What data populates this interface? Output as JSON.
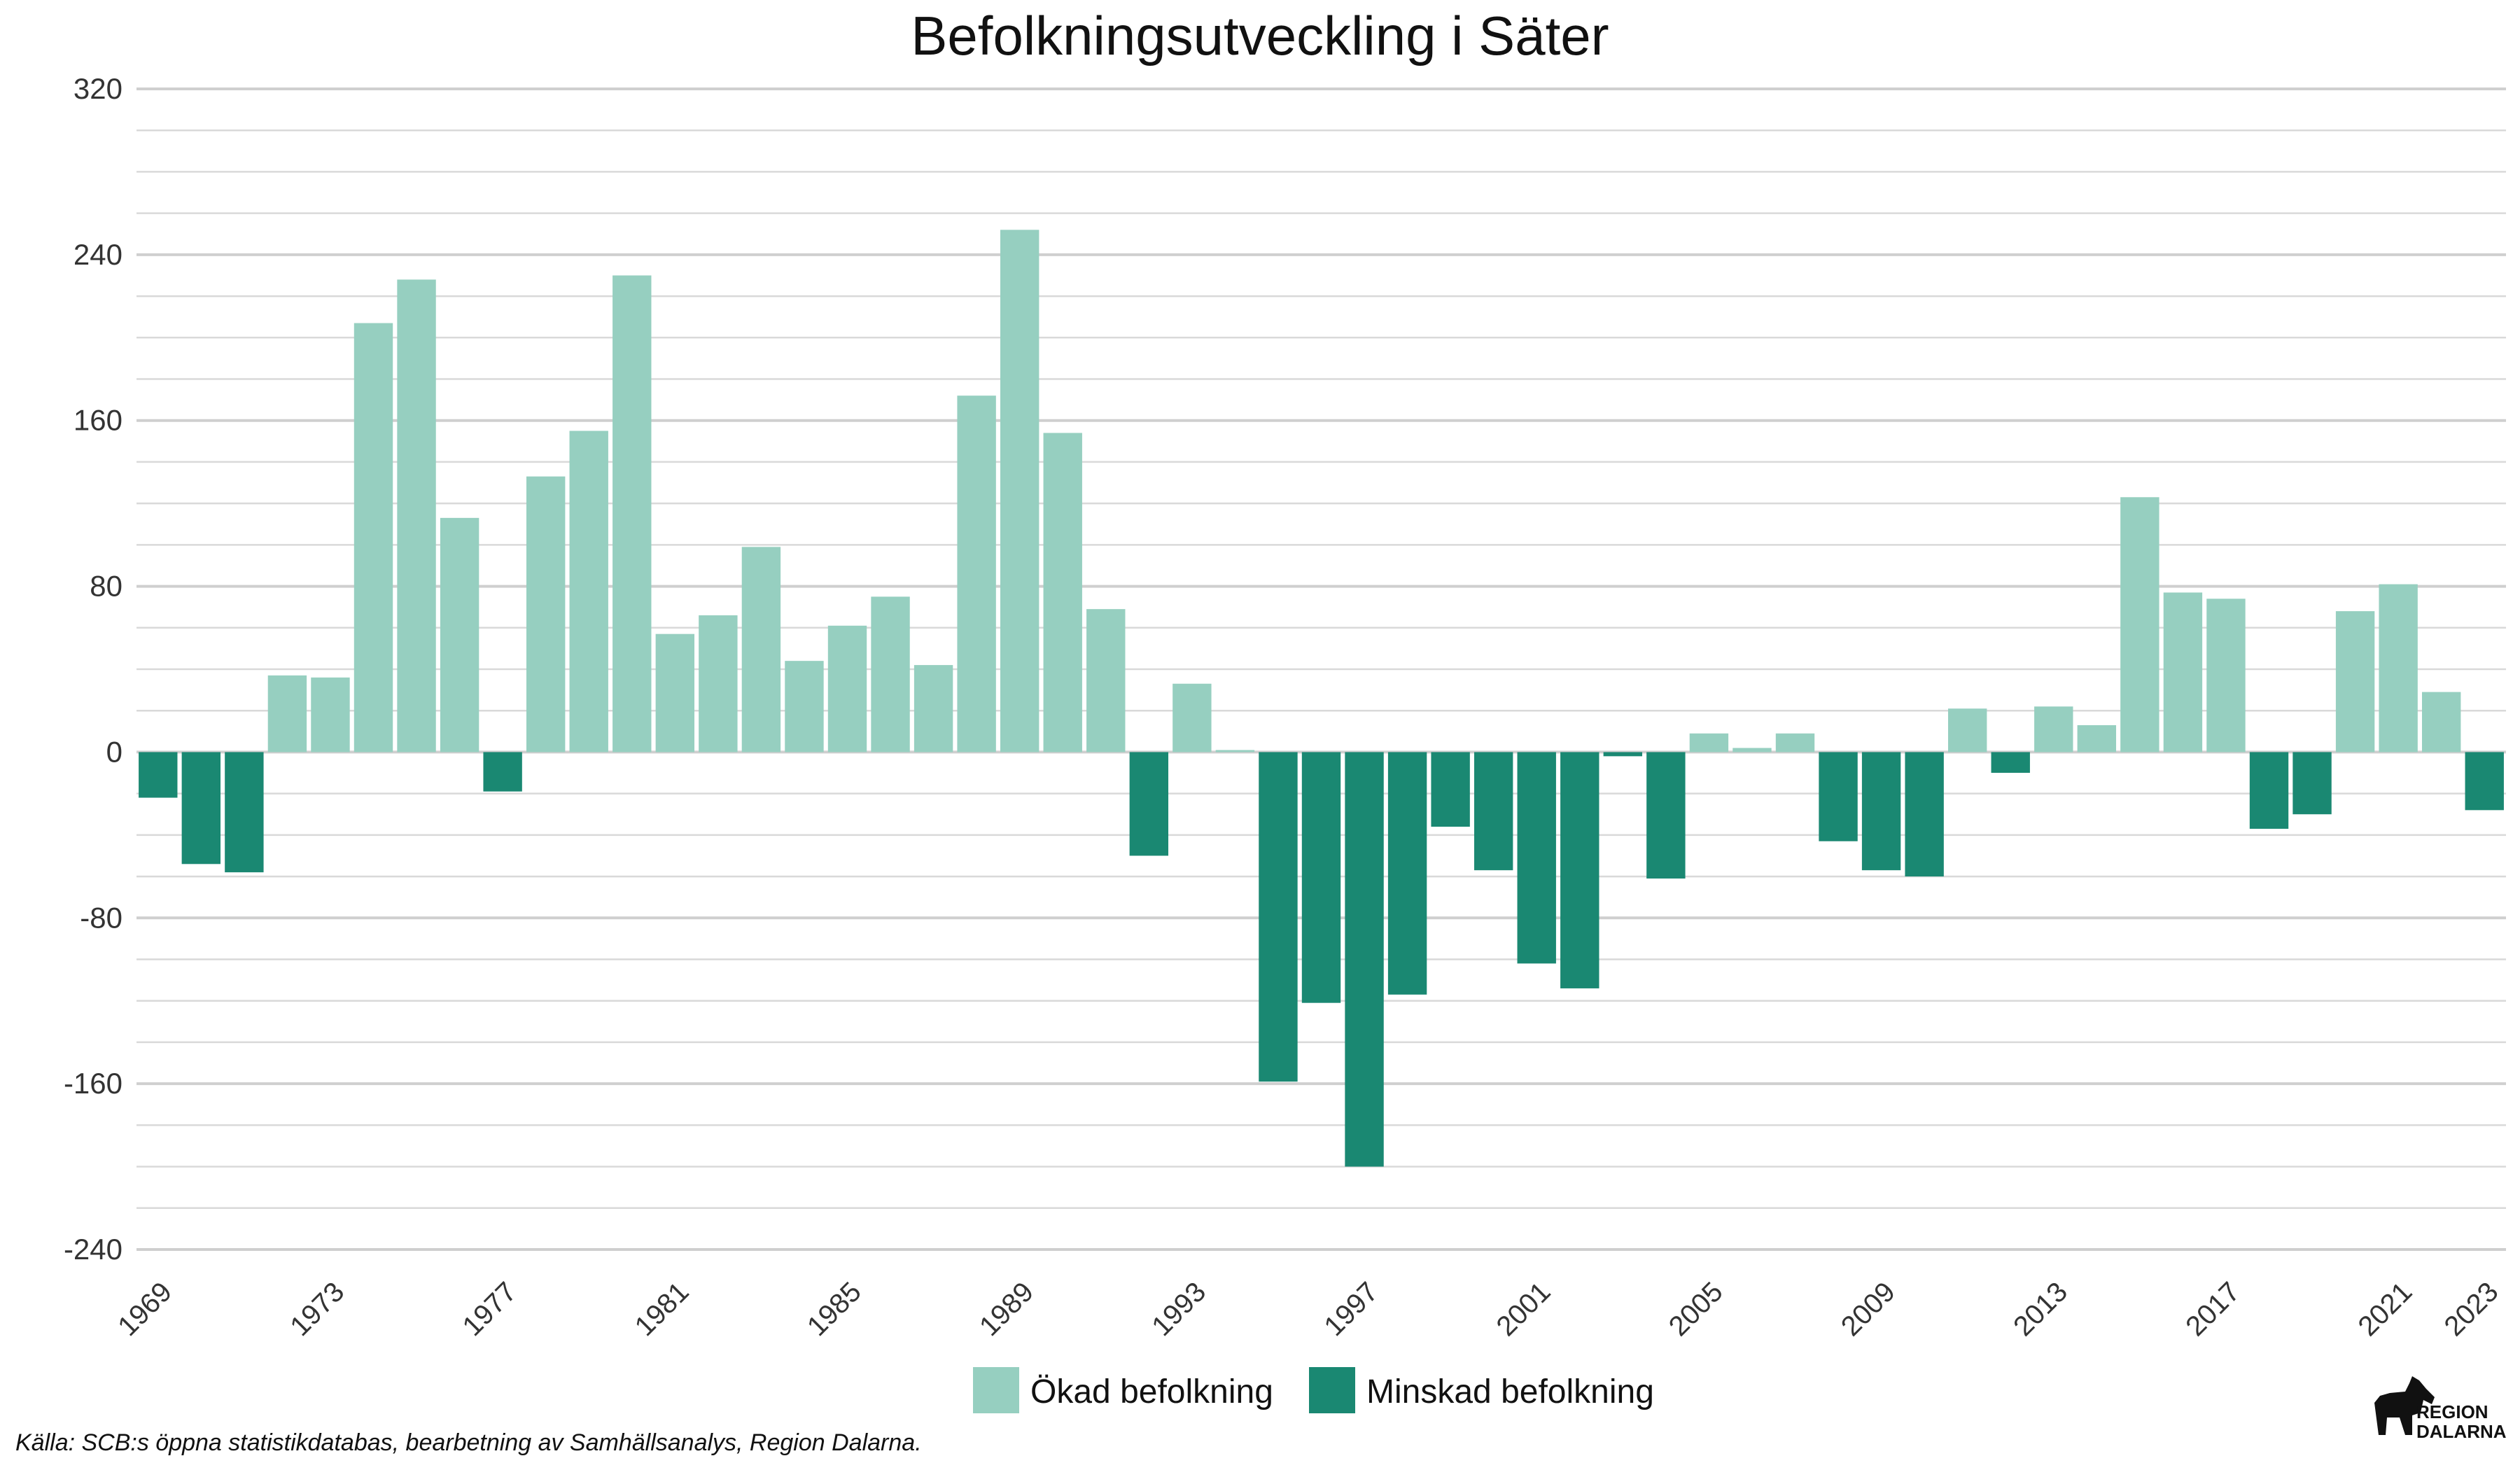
{
  "chart_data": {
    "type": "bar",
    "title": "Befolkningsutveckling i Säter",
    "xlabel": "",
    "ylabel": "",
    "ylim": [
      -240,
      320
    ],
    "yticks": [
      320,
      240,
      160,
      80,
      0,
      -80,
      -160,
      -240
    ],
    "xtick_labels": [
      "1969",
      "1973",
      "1977",
      "1981",
      "1985",
      "1989",
      "1993",
      "1997",
      "2001",
      "2005",
      "2009",
      "2013",
      "2017",
      "2021",
      "2023"
    ],
    "grid": true,
    "legend_position": "bottom",
    "categories": [
      "1969",
      "1970",
      "1971",
      "1972",
      "1973",
      "1974",
      "1975",
      "1976",
      "1977",
      "1978",
      "1979",
      "1980",
      "1981",
      "1982",
      "1983",
      "1984",
      "1985",
      "1986",
      "1987",
      "1988",
      "1989",
      "1990",
      "1991",
      "1992",
      "1993",
      "1994",
      "1995",
      "1996",
      "1997",
      "1998",
      "1999",
      "2000",
      "2001",
      "2002",
      "2003",
      "2004",
      "2005",
      "2006",
      "2007",
      "2008",
      "2009",
      "2010",
      "2011",
      "2012",
      "2013",
      "2014",
      "2015",
      "2016",
      "2017",
      "2018",
      "2019",
      "2020",
      "2021",
      "2022",
      "2023"
    ],
    "values": [
      -22,
      -54,
      -58,
      37,
      36,
      207,
      228,
      113,
      -19,
      133,
      155,
      230,
      57,
      66,
      99,
      44,
      61,
      75,
      42,
      172,
      252,
      154,
      69,
      -50,
      33,
      1,
      -159,
      -121,
      -200,
      -117,
      -36,
      -57,
      -102,
      -114,
      -2,
      -61,
      9,
      2,
      9,
      -43,
      -57,
      -60,
      21,
      -10,
      22,
      13,
      123,
      77,
      74,
      -37,
      -30,
      68,
      81,
      29,
      -28
    ],
    "series": [
      {
        "name": "Ökad befolkning",
        "color": "#96cfc0"
      },
      {
        "name": "Minskad befolkning",
        "color": "#1a8872"
      }
    ]
  },
  "source": "Källa: SCB:s öppna statistikdatabas, bearbetning av Samhällsanalys, Region Dalarna.",
  "logo": {
    "line1": "REGION",
    "line2": "DALARNA",
    "icon": "dala-horse-icon"
  }
}
